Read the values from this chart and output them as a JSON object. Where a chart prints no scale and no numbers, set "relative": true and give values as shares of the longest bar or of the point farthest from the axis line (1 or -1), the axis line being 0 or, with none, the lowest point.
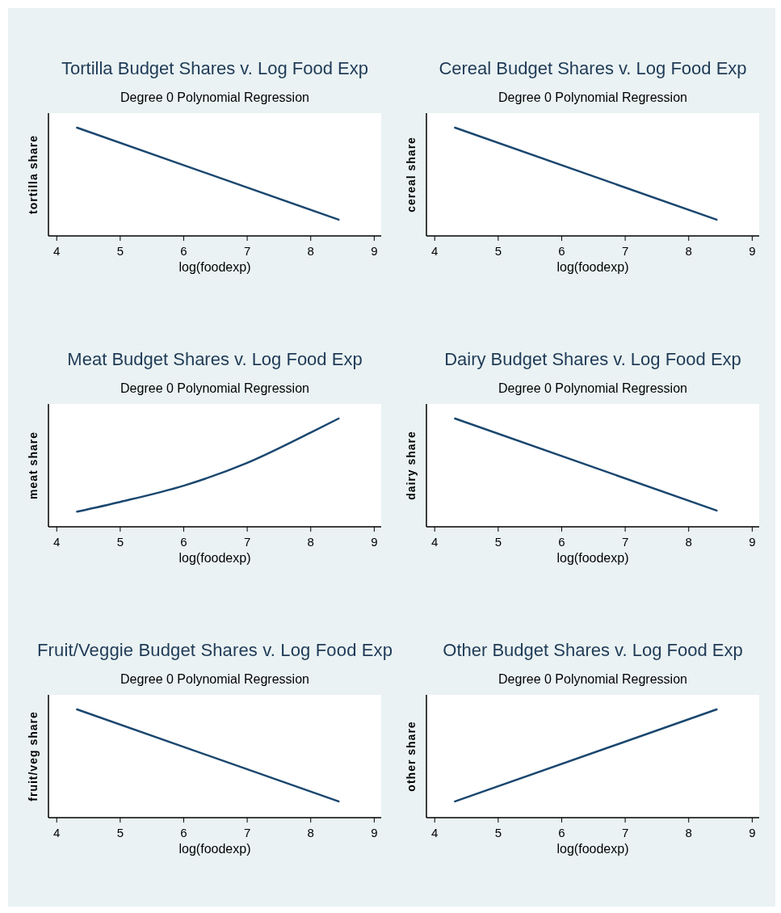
{
  "chart_data": [
    {
      "type": "line",
      "title": "Tortilla Budget Shares v. Log Food Exp",
      "subtitle": "Degree 0 Polynomial Regression",
      "xlabel": "log(foodexp)",
      "ylabel": "tortilla share",
      "relative": true,
      "tick_labels": "x",
      "xlim": [
        3.87,
        9.11
      ],
      "xticks": [
        4,
        5,
        6,
        7,
        8,
        9
      ],
      "x": [
        4.32,
        8.44
      ],
      "series": [
        {
          "color": "#1a476f",
          "values": [
            1,
            0.15
          ]
        }
      ]
    },
    {
      "type": "line",
      "title": "Cereal Budget Shares v. Log Food Exp",
      "subtitle": "Degree 0 Polynomial Regression",
      "xlabel": "log(foodexp)",
      "ylabel": "cereal share",
      "relative": true,
      "tick_labels": "x",
      "xlim": [
        3.87,
        9.11
      ],
      "xticks": [
        4,
        5,
        6,
        7,
        8,
        9
      ],
      "x": [
        4.32,
        8.44
      ],
      "series": [
        {
          "color": "#1a476f",
          "values": [
            1,
            0.15
          ]
        }
      ]
    },
    {
      "type": "line",
      "title": "Meat Budget Shares v. Log Food Exp",
      "subtitle": "Degree 0 Polynomial Regression",
      "xlabel": "log(foodexp)",
      "ylabel": "meat share",
      "relative": true,
      "tick_labels": "x",
      "xlim": [
        3.87,
        9.11
      ],
      "xticks": [
        4,
        5,
        6,
        7,
        8,
        9
      ],
      "x": [
        4.32,
        5,
        6,
        7,
        8,
        8.44
      ],
      "series": [
        {
          "color": "#1a476f",
          "values": [
            0.14,
            0.23,
            0.38,
            0.59,
            0.87,
            1
          ]
        }
      ]
    },
    {
      "type": "line",
      "title": "Dairy Budget Shares v. Log Food Exp",
      "subtitle": "Degree 0 Polynomial Regression",
      "xlabel": "log(foodexp)",
      "ylabel": "dairy share",
      "relative": true,
      "tick_labels": "x",
      "xlim": [
        3.87,
        9.11
      ],
      "xticks": [
        4,
        5,
        6,
        7,
        8,
        9
      ],
      "x": [
        4.32,
        8.44
      ],
      "series": [
        {
          "color": "#1a476f",
          "values": [
            1,
            0.15
          ]
        }
      ]
    },
    {
      "type": "line",
      "title": "Fruit/Veggie Budget Shares v. Log Food Exp",
      "subtitle": "Degree 0 Polynomial Regression",
      "xlabel": "log(foodexp)",
      "ylabel": "fruit/veg share",
      "relative": true,
      "tick_labels": "x",
      "xlim": [
        3.87,
        9.11
      ],
      "xticks": [
        4,
        5,
        6,
        7,
        8,
        9
      ],
      "x": [
        4.32,
        8.44
      ],
      "series": [
        {
          "color": "#1a476f",
          "values": [
            1,
            0.15
          ]
        }
      ]
    },
    {
      "type": "line",
      "title": "Other Budget Shares v. Log Food Exp",
      "subtitle": "Degree 0 Polynomial Regression",
      "xlabel": "log(foodexp)",
      "ylabel": "other share",
      "relative": true,
      "tick_labels": "x",
      "xlim": [
        3.87,
        9.11
      ],
      "xticks": [
        4,
        5,
        6,
        7,
        8,
        9
      ],
      "x": [
        4.32,
        8.44
      ],
      "series": [
        {
          "color": "#1a476f",
          "values": [
            0.15,
            1
          ]
        }
      ]
    }
  ]
}
